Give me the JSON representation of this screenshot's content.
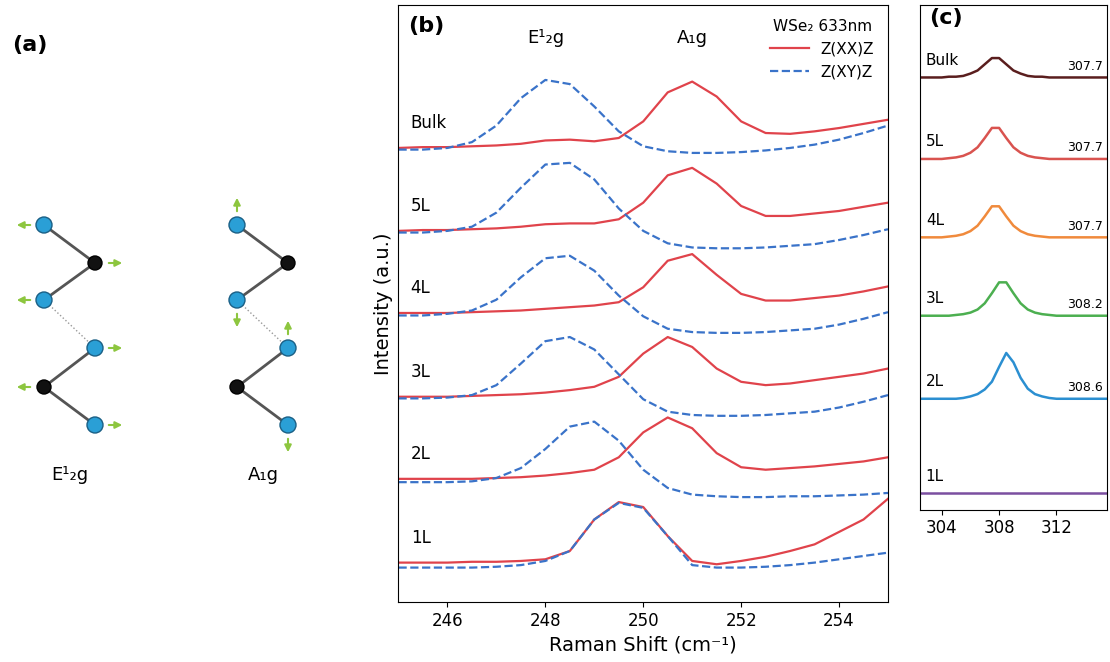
{
  "diagram": {
    "panel_label": "(a)",
    "modes": [
      "E¹₂g",
      "A₁g"
    ]
  },
  "chart_data": [
    {
      "type": "line",
      "panel_label": "(b)",
      "xlabel": "Raman Shift (cm⁻¹)",
      "ylabel": "Intensity (a.u.)",
      "x": [
        245,
        245.5,
        246,
        246.5,
        247,
        247.5,
        248,
        248.5,
        249,
        249.5,
        250,
        250.5,
        251,
        251.5,
        252,
        252.5,
        253,
        253.5,
        254,
        254.5,
        255
      ],
      "xlim": [
        245,
        255
      ],
      "xticks": [
        246,
        248,
        250,
        252,
        254
      ],
      "ylim": [
        0,
        7.2
      ],
      "tick_labels": "x",
      "legend": "upper right",
      "legend_title": "WSe₂ 633nm",
      "layers": [
        "Bulk",
        "5L",
        "4L",
        "3L",
        "2L",
        "1L"
      ],
      "series": [
        {
          "name": "Z(XX)Z̄",
          "color": "#e0434b",
          "line_style": "solid",
          "peak_label": "A₁g",
          "values": [
            [
              5.48,
              5.49,
              5.49,
              5.5,
              5.51,
              5.53,
              5.57,
              5.58,
              5.56,
              5.6,
              5.8,
              6.15,
              6.28,
              6.1,
              5.8,
              5.66,
              5.65,
              5.68,
              5.72,
              5.77,
              5.82
            ],
            [
              4.48,
              4.49,
              4.49,
              4.5,
              4.51,
              4.53,
              4.56,
              4.57,
              4.57,
              4.62,
              4.82,
              5.15,
              5.24,
              5.05,
              4.78,
              4.66,
              4.66,
              4.69,
              4.72,
              4.77,
              4.82
            ],
            [
              3.49,
              3.49,
              3.49,
              3.5,
              3.51,
              3.52,
              3.54,
              3.56,
              3.58,
              3.62,
              3.8,
              4.12,
              4.2,
              3.95,
              3.72,
              3.64,
              3.64,
              3.67,
              3.7,
              3.75,
              3.81
            ],
            [
              2.48,
              2.48,
              2.48,
              2.49,
              2.5,
              2.51,
              2.53,
              2.56,
              2.6,
              2.72,
              3.0,
              3.2,
              3.08,
              2.82,
              2.66,
              2.62,
              2.64,
              2.68,
              2.72,
              2.76,
              2.82
            ],
            [
              1.49,
              1.49,
              1.49,
              1.49,
              1.5,
              1.51,
              1.53,
              1.56,
              1.6,
              1.75,
              2.05,
              2.23,
              2.1,
              1.8,
              1.63,
              1.6,
              1.62,
              1.64,
              1.67,
              1.7,
              1.75
            ],
            [
              0.48,
              0.48,
              0.48,
              0.49,
              0.49,
              0.5,
              0.52,
              0.62,
              1.0,
              1.21,
              1.15,
              0.8,
              0.5,
              0.46,
              0.5,
              0.55,
              0.62,
              0.7,
              0.85,
              1.0,
              1.25
            ]
          ]
        },
        {
          "name": "Z(XY)Z̄",
          "color": "#3a73c9",
          "line_style": "dashed",
          "peak_label": "E¹₂g",
          "values": [
            [
              5.46,
              5.46,
              5.48,
              5.55,
              5.75,
              6.08,
              6.3,
              6.25,
              5.98,
              5.68,
              5.5,
              5.44,
              5.42,
              5.42,
              5.43,
              5.45,
              5.48,
              5.52,
              5.58,
              5.66,
              5.75
            ],
            [
              4.46,
              4.46,
              4.48,
              4.53,
              4.7,
              5.0,
              5.28,
              5.3,
              5.1,
              4.75,
              4.48,
              4.33,
              4.28,
              4.27,
              4.27,
              4.28,
              4.3,
              4.32,
              4.37,
              4.43,
              4.5
            ],
            [
              3.46,
              3.46,
              3.48,
              3.52,
              3.65,
              3.92,
              4.15,
              4.18,
              4.0,
              3.7,
              3.45,
              3.3,
              3.26,
              3.25,
              3.25,
              3.26,
              3.28,
              3.3,
              3.35,
              3.42,
              3.5
            ],
            [
              2.46,
              2.46,
              2.47,
              2.5,
              2.62,
              2.88,
              3.15,
              3.2,
              3.05,
              2.75,
              2.45,
              2.3,
              2.26,
              2.25,
              2.25,
              2.26,
              2.28,
              2.3,
              2.35,
              2.42,
              2.5
            ],
            [
              1.45,
              1.45,
              1.45,
              1.46,
              1.5,
              1.62,
              1.85,
              2.12,
              2.18,
              1.95,
              1.6,
              1.38,
              1.3,
              1.28,
              1.27,
              1.27,
              1.28,
              1.28,
              1.29,
              1.3,
              1.32
            ],
            [
              0.42,
              0.42,
              0.42,
              0.42,
              0.43,
              0.45,
              0.5,
              0.62,
              1.0,
              1.2,
              1.14,
              0.8,
              0.45,
              0.42,
              0.42,
              0.43,
              0.45,
              0.48,
              0.52,
              0.56,
              0.6
            ]
          ]
        }
      ]
    },
    {
      "type": "line",
      "panel_label": "(c)",
      "x": [
        302.5,
        303,
        303.5,
        304,
        304.5,
        305,
        305.5,
        306,
        306.5,
        307,
        307.5,
        308,
        308.5,
        309,
        309.5,
        310,
        310.5,
        311,
        311.5,
        312,
        312.5,
        313,
        313.5,
        314,
        314.5,
        315,
        315.5
      ],
      "xlim": [
        302.5,
        315.5
      ],
      "xticks": [
        304,
        308,
        312
      ],
      "ylim": [
        0,
        6.5
      ],
      "tick_labels": "x",
      "series": [
        {
          "name": "Bulk",
          "color": "#5a1e1e",
          "peak": 307.7,
          "values": [
            5.57,
            5.57,
            5.57,
            5.57,
            5.58,
            5.58,
            5.59,
            5.62,
            5.66,
            5.74,
            5.82,
            5.82,
            5.74,
            5.66,
            5.62,
            5.59,
            5.58,
            5.58,
            5.57,
            5.57,
            5.57,
            5.57,
            5.57,
            5.57,
            5.57,
            5.57,
            5.57
          ]
        },
        {
          "name": "5L",
          "color": "#d9534f",
          "peak": 307.7,
          "values": [
            4.52,
            4.52,
            4.52,
            4.52,
            4.53,
            4.54,
            4.56,
            4.6,
            4.67,
            4.79,
            4.92,
            4.92,
            4.79,
            4.67,
            4.6,
            4.56,
            4.54,
            4.53,
            4.52,
            4.52,
            4.52,
            4.52,
            4.52,
            4.52,
            4.52,
            4.52,
            4.52
          ]
        },
        {
          "name": "4L",
          "color": "#f08a3c",
          "peak": 307.7,
          "values": [
            3.51,
            3.51,
            3.51,
            3.51,
            3.52,
            3.53,
            3.55,
            3.59,
            3.66,
            3.78,
            3.91,
            3.91,
            3.78,
            3.66,
            3.59,
            3.55,
            3.53,
            3.52,
            3.51,
            3.51,
            3.51,
            3.51,
            3.51,
            3.51,
            3.51,
            3.51,
            3.51
          ]
        },
        {
          "name": "3L",
          "color": "#4caf50",
          "peak": 308.2,
          "values": [
            2.5,
            2.5,
            2.5,
            2.5,
            2.5,
            2.51,
            2.52,
            2.54,
            2.58,
            2.66,
            2.79,
            2.93,
            2.93,
            2.79,
            2.66,
            2.58,
            2.54,
            2.52,
            2.51,
            2.5,
            2.5,
            2.5,
            2.5,
            2.5,
            2.5,
            2.5,
            2.5
          ]
        },
        {
          "name": "2L",
          "color": "#2b8fd1",
          "peak": 308.6,
          "values": [
            1.43,
            1.43,
            1.43,
            1.43,
            1.43,
            1.43,
            1.44,
            1.46,
            1.49,
            1.55,
            1.65,
            1.84,
            2.02,
            1.9,
            1.7,
            1.56,
            1.49,
            1.46,
            1.44,
            1.43,
            1.43,
            1.43,
            1.43,
            1.43,
            1.43,
            1.43,
            1.43
          ]
        },
        {
          "name": "1L",
          "color": "#7b4fa0",
          "values": [
            0.21,
            0.21,
            0.21,
            0.21,
            0.21,
            0.21,
            0.21,
            0.21,
            0.21,
            0.21,
            0.21,
            0.21,
            0.21,
            0.21,
            0.21,
            0.21,
            0.21,
            0.21,
            0.21,
            0.21,
            0.21,
            0.21,
            0.21,
            0.21,
            0.21,
            0.21,
            0.21
          ]
        }
      ]
    }
  ]
}
